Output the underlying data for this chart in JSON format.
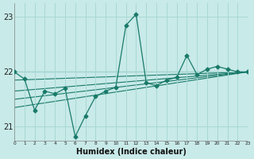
{
  "xlabel": "Humidex (Indice chaleur)",
  "bg_color": "#c8eae8",
  "line_color": "#1a7a6a",
  "grid_color": "#a8d8d4",
  "xlim": [
    0,
    23
  ],
  "ylim": [
    20.75,
    23.25
  ],
  "yticks": [
    21,
    22,
    23
  ],
  "xtick_labels": [
    "0",
    "1",
    "2",
    "3",
    "4",
    "5",
    "6",
    "7",
    "8",
    "9",
    "10",
    "11",
    "12",
    "13",
    "14",
    "15",
    "16",
    "17",
    "18",
    "19",
    "20",
    "21",
    "22",
    "23"
  ],
  "jagged": [
    22.0,
    21.87,
    21.3,
    21.65,
    21.6,
    21.7,
    20.82,
    21.2,
    21.55,
    21.65,
    21.72,
    22.85,
    23.05,
    21.8,
    21.75,
    21.85,
    21.9,
    22.3,
    21.95,
    22.05,
    22.1,
    22.05,
    22.0,
    22.0
  ],
  "trend_lines": [
    [
      22.0,
      22.0
    ],
    [
      21.85,
      22.0
    ],
    [
      21.65,
      22.0
    ],
    [
      21.5,
      22.0
    ],
    [
      21.35,
      22.0
    ]
  ]
}
